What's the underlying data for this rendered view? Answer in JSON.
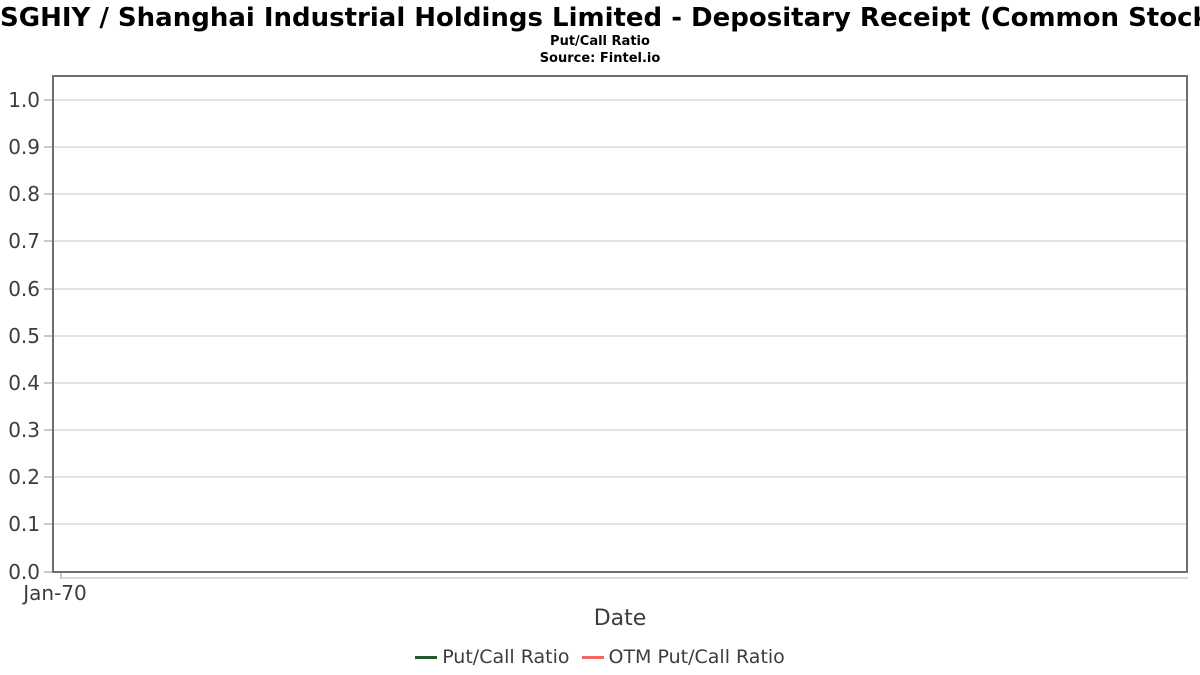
{
  "chart_data": {
    "type": "line",
    "title": "SGHIY / Shanghai Industrial Holdings Limited - Depositary Receipt (Common Stock)",
    "subtitle": "Put/Call Ratio",
    "source": "Source: Fintel.io",
    "xlabel": "Date",
    "ylabel": "",
    "xticks": [
      "Jan-70"
    ],
    "yticks": [
      "0.0",
      "0.1",
      "0.2",
      "0.3",
      "0.4",
      "0.5",
      "0.6",
      "0.7",
      "0.8",
      "0.9",
      "1.0"
    ],
    "ylim": [
      0.0,
      1.05
    ],
    "grid": true,
    "legend_position": "bottom",
    "series": [
      {
        "name": "Put/Call Ratio",
        "color": "#26582f",
        "values": []
      },
      {
        "name": "OTM Put/Call Ratio",
        "color": "#f4655f",
        "values": []
      }
    ]
  },
  "colors": {
    "spine": "#6e6e6e",
    "gridline": "#e3e3e3",
    "tick": "#c9c9c9",
    "sub_axis": "#dcdcdc",
    "text": "#3d3d3d",
    "title_text": "#000000"
  }
}
